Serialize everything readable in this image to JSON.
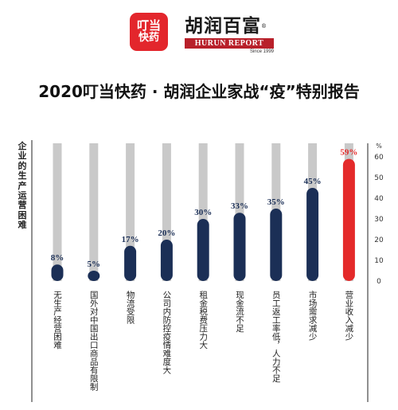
{
  "header": {
    "logo": {
      "line1": "叮当",
      "line2": "快药",
      "brand_color": "#e3262c"
    },
    "hurun": {
      "cn_name": "胡润百富",
      "registered_mark": "®",
      "en_name": "HURUN REPORT",
      "since": "Since 1999",
      "band_color": "#b8202a"
    }
  },
  "title": "2020叮当快药 · 胡润企业家战“疫”特别报告",
  "chart_data": {
    "type": "bar",
    "title": "2020叮当快药 · 胡润企业家战“疫”特别报告",
    "ylabel": "企业的生产运营困难",
    "y_unit": "%",
    "ylim": [
      0,
      60
    ],
    "yticks": [
      "0",
      "10",
      "20",
      "30",
      "40",
      "50",
      "60"
    ],
    "categories": [
      "无生产经营困难",
      "国外对中国出口商品有限制",
      "物流受限",
      "公司内防控疫情难度大",
      "租金税费压力大",
      "现金流不足",
      "员工返工率低，人力不足",
      "市场需求减少",
      "营业收入减少"
    ],
    "values": [
      8,
      5,
      17,
      20,
      30,
      33,
      35,
      45,
      59
    ],
    "value_labels": [
      "8%",
      "5%",
      "17%",
      "20%",
      "30%",
      "33%",
      "35%",
      "45%",
      "59%"
    ],
    "highlight_index": 8,
    "colors": {
      "bar": "#1b2f56",
      "highlight": "#e42a2a",
      "track": "#c9c9c9",
      "label": "#1b2f56",
      "highlight_label": "#e42a2a"
    }
  }
}
